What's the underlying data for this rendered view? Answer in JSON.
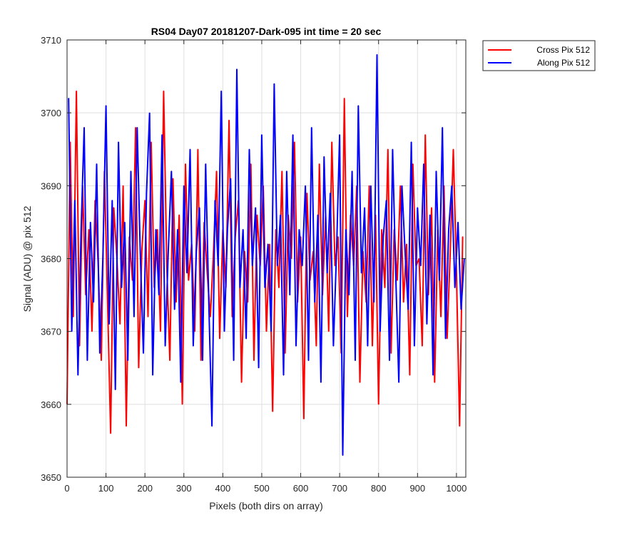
{
  "chart_data": {
    "type": "line",
    "title": "RS04 Day07 20181207-Dark-095 int time = 20 sec",
    "xlabel": "Pixels (both dirs on array)",
    "ylabel": "Signal (ADU) @ pix 512",
    "xlim": [
      0,
      1024
    ],
    "ylim": [
      3650,
      3710
    ],
    "xticks": [
      0,
      100,
      200,
      300,
      400,
      500,
      600,
      700,
      800,
      900,
      1000
    ],
    "yticks": [
      3650,
      3660,
      3670,
      3680,
      3690,
      3700,
      3710
    ],
    "grid": true,
    "legend_position": "outside top-right",
    "series_note": "noisy pixel-by-pixel signal, mean about 3680 ADU, spread roughly 3653 to 3708",
    "series": [
      {
        "name": "Cross Pix 512",
        "color": "#ff0000",
        "x_start": 0,
        "x_step": 8,
        "values": [
          3660,
          3696,
          3672,
          3703,
          3668,
          3690,
          3675,
          3684,
          3670,
          3688,
          3679,
          3666,
          3692,
          3674,
          3656,
          3687,
          3680,
          3671,
          3690,
          3657,
          3683,
          3677,
          3698,
          3665,
          3681,
          3688,
          3672,
          3696,
          3676,
          3684,
          3670,
          3703,
          3679,
          3666,
          3691,
          3674,
          3686,
          3660,
          3693,
          3677,
          3682,
          3670,
          3695,
          3666,
          3685,
          3678,
          3672,
          3681,
          3692,
          3669,
          3684,
          3676,
          3699,
          3672,
          3683,
          3688,
          3663,
          3681,
          3674,
          3693,
          3666,
          3686,
          3679,
          3690,
          3670,
          3682,
          3659,
          3684,
          3676,
          3692,
          3667,
          3686,
          3680,
          3696,
          3674,
          3683,
          3658,
          3689,
          3677,
          3681,
          3668,
          3693,
          3675,
          3686,
          3670,
          3696,
          3679,
          3683,
          3667,
          3702,
          3672,
          3686,
          3679,
          3690,
          3663,
          3681,
          3674,
          3690,
          3668,
          3686,
          3660,
          3684,
          3676,
          3695,
          3667,
          3684,
          3677,
          3690,
          3674,
          3682,
          3664,
          3693,
          3679,
          3680,
          3668,
          3697,
          3675,
          3687,
          3663,
          3684,
          3672,
          3690,
          3669,
          3681,
          3695,
          3678,
          3657,
          3683
        ]
      },
      {
        "name": "Along Pix 512",
        "color": "#0000ff",
        "x_start": 4,
        "x_step": 8,
        "values": [
          3702,
          3670,
          3688,
          3664,
          3684,
          3698,
          3666,
          3685,
          3674,
          3693,
          3667,
          3680,
          3701,
          3671,
          3688,
          3662,
          3696,
          3676,
          3685,
          3666,
          3692,
          3672,
          3698,
          3681,
          3667,
          3689,
          3700,
          3664,
          3684,
          3675,
          3697,
          3668,
          3681,
          3692,
          3673,
          3684,
          3663,
          3690,
          3678,
          3695,
          3668,
          3681,
          3687,
          3666,
          3693,
          3674,
          3657,
          3688,
          3679,
          3703,
          3670,
          3684,
          3691,
          3666,
          3706,
          3676,
          3684,
          3669,
          3695,
          3679,
          3687,
          3665,
          3697,
          3676,
          3682,
          3670,
          3704,
          3679,
          3686,
          3664,
          3692,
          3675,
          3697,
          3668,
          3684,
          3679,
          3690,
          3666,
          3698,
          3674,
          3686,
          3663,
          3694,
          3678,
          3689,
          3668,
          3681,
          3697,
          3653,
          3684,
          3675,
          3692,
          3666,
          3701,
          3678,
          3687,
          3668,
          3690,
          3674,
          3708,
          3670,
          3683,
          3688,
          3666,
          3695,
          3678,
          3663,
          3690,
          3681,
          3673,
          3696,
          3668,
          3687,
          3679,
          3693,
          3671,
          3686,
          3664,
          3692,
          3677,
          3698,
          3669,
          3684,
          3690,
          3676,
          3685,
          3673,
          3680
        ]
      }
    ]
  }
}
